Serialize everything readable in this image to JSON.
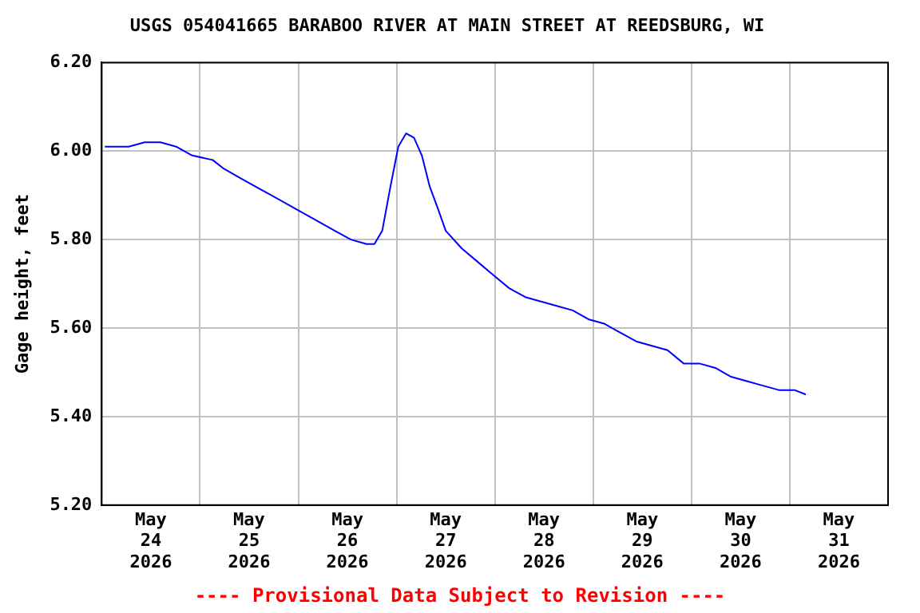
{
  "chart_data": {
    "type": "line",
    "title": "USGS 054041665 BARABOO RIVER AT MAIN STREET AT REEDSBURG, WI",
    "ylabel": "Gage height, feet",
    "annotations": [
      "---- Provisional Data Subject to Revision ----"
    ],
    "x": [
      "2026-05-24T00:45",
      "2026-05-24T06:35",
      "2026-05-24T10:30",
      "2026-05-24T14:20",
      "2026-05-24T18:10",
      "2026-05-24T22:05",
      "2026-05-25T03:05",
      "2026-05-25T05:50",
      "2026-05-25T09:40",
      "2026-05-25T13:30",
      "2026-05-25T17:25",
      "2026-05-25T21:20",
      "2026-05-26T01:10",
      "2026-05-26T05:00",
      "2026-05-26T08:55",
      "2026-05-26T12:50",
      "2026-05-26T16:40",
      "2026-05-26T18:35",
      "2026-05-26T20:30",
      "2026-05-26T22:30",
      "2026-05-27T00:25",
      "2026-05-27T02:20",
      "2026-05-27T04:15",
      "2026-05-27T06:10",
      "2026-05-27T08:05",
      "2026-05-27T10:05",
      "2026-05-27T12:00",
      "2026-05-27T15:55",
      "2026-05-27T19:45",
      "2026-05-27T23:35",
      "2026-05-28T03:30",
      "2026-05-28T07:25",
      "2026-05-28T11:15",
      "2026-05-28T15:05",
      "2026-05-28T19:00",
      "2026-05-28T22:50",
      "2026-05-29T02:40",
      "2026-05-29T06:35",
      "2026-05-29T10:30",
      "2026-05-29T14:20",
      "2026-05-29T18:10",
      "2026-05-29T22:05",
      "2026-05-30T01:55",
      "2026-05-30T05:50",
      "2026-05-30T09:40",
      "2026-05-30T13:30",
      "2026-05-30T17:25",
      "2026-05-30T21:20",
      "2026-05-31T01:10",
      "2026-05-31T03:55"
    ],
    "series": [
      {
        "color": "#0000ff",
        "values": [
          6.01,
          6.01,
          6.02,
          6.02,
          6.01,
          5.99,
          5.98,
          5.96,
          5.94,
          5.92,
          5.9,
          5.88,
          5.86,
          5.84,
          5.82,
          5.8,
          5.79,
          5.79,
          5.82,
          5.92,
          6.01,
          6.04,
          6.03,
          5.99,
          5.92,
          5.87,
          5.82,
          5.78,
          5.75,
          5.72,
          5.69,
          5.67,
          5.66,
          5.65,
          5.64,
          5.62,
          5.61,
          5.59,
          5.57,
          5.56,
          5.55,
          5.52,
          5.52,
          5.51,
          5.49,
          5.48,
          5.47,
          5.46,
          5.46,
          5.45
        ]
      }
    ],
    "xlim": [
      "2026-05-24T00:00",
      "2026-06-01T00:00"
    ],
    "xticks": [
      {
        "value": "2026-05-24T12:00",
        "label": "May\n24\n2026"
      },
      {
        "value": "2026-05-25T00:00",
        "label": null
      },
      {
        "value": "2026-05-25T12:00",
        "label": "May\n25\n2026"
      },
      {
        "value": "2026-05-26T00:00",
        "label": null
      },
      {
        "value": "2026-05-26T12:00",
        "label": "May\n26\n2026"
      },
      {
        "value": "2026-05-27T00:00",
        "label": null
      },
      {
        "value": "2026-05-27T12:00",
        "label": "May\n27\n2026"
      },
      {
        "value": "2026-05-28T00:00",
        "label": null
      },
      {
        "value": "2026-05-28T12:00",
        "label": "May\n28\n2026"
      },
      {
        "value": "2026-05-29T00:00",
        "label": null
      },
      {
        "value": "2026-05-29T12:00",
        "label": "May\n29\n2026"
      },
      {
        "value": "2026-05-30T00:00",
        "label": null
      },
      {
        "value": "2026-05-30T12:00",
        "label": "May\n30\n2026"
      },
      {
        "value": "2026-05-31T00:00",
        "label": null
      },
      {
        "value": "2026-05-31T12:00",
        "label": "May\n31\n2026"
      }
    ],
    "ylim": [
      5.2,
      6.2
    ],
    "yticks": [
      {
        "value": 5.2,
        "label": "5.20"
      },
      {
        "value": 5.4,
        "label": "5.40"
      },
      {
        "value": 5.6,
        "label": "5.60"
      },
      {
        "value": 5.8,
        "label": "5.80"
      },
      {
        "value": 6.0,
        "label": "6.00"
      },
      {
        "value": 6.2,
        "label": "6.20"
      }
    ],
    "grid": true,
    "legend": false,
    "marker": "none",
    "line_style": "solid"
  }
}
